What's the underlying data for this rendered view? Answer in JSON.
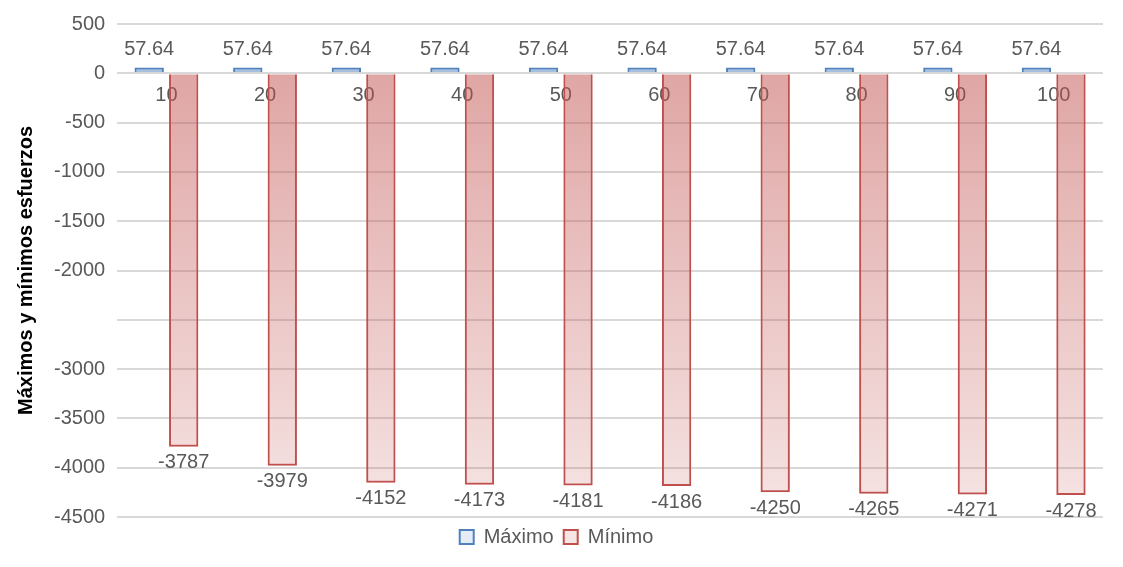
{
  "chart_data": {
    "type": "bar",
    "ylabel": "Máximos y mínimos esfuerzos",
    "categories": [
      "10",
      "20",
      "30",
      "40",
      "50",
      "60",
      "70",
      "80",
      "90",
      "100"
    ],
    "series": [
      {
        "name": "Máximo",
        "color": "#4f81bd",
        "values": [
          57.64,
          57.64,
          57.64,
          57.64,
          57.64,
          57.64,
          57.64,
          57.64,
          57.64,
          57.64
        ]
      },
      {
        "name": "Mínimo",
        "color": "#c0504d",
        "values": [
          -3787,
          -3979,
          -4152,
          -4173,
          -4181,
          -4186,
          -4250,
          -4265,
          -4271,
          -4278
        ]
      }
    ],
    "ylim": [
      -4500,
      500
    ],
    "yticks": [
      500,
      0,
      -500,
      -1000,
      -1500,
      -2000,
      {
        "value": -2500,
        "label": null
      },
      -3000,
      -3500,
      -4000,
      -4500
    ],
    "grid": "y",
    "legend": "bottom",
    "data_labels": true
  }
}
